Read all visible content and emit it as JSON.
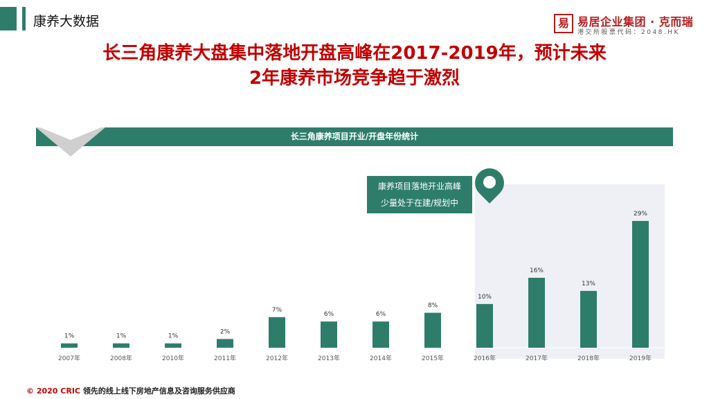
{
  "header": {
    "section_title": "康养大数据",
    "logo": {
      "seal": "易",
      "name": "易居企业集团 · 克而瑞",
      "sub": "港交所股票代码：2048.HK",
      "color": "#b31b1b"
    }
  },
  "headline": {
    "line1": "长三角康养大盘集中落地开盘高峰在2017-2019年，预计未来",
    "line2": "2年康养市场竞争趋于激烈",
    "color": "#c00000"
  },
  "callout": {
    "line1": "康养项目落地开业高峰",
    "line2": "少量处于在建/规划中"
  },
  "footer": {
    "copyright": "© 2020 CRIC",
    "text": "领先的线上线下房地产信息及咨询服务供应商"
  },
  "colors": {
    "accent": "#2e7d6b",
    "highlight_panel": "#eef0f5"
  },
  "chart_data": {
    "type": "bar",
    "title": "长三角康养项目开业/开盘年份统计",
    "categories": [
      "2007年",
      "2008年",
      "2010年",
      "2011年",
      "2012年",
      "2013年",
      "2014年",
      "2015年",
      "2016年",
      "2017年",
      "2018年",
      "2019年"
    ],
    "values": [
      1,
      1,
      1,
      2,
      7,
      6,
      6,
      8,
      10,
      16,
      13,
      29
    ],
    "data_labels": [
      "1%",
      "1%",
      "1%",
      "2%",
      "7%",
      "6%",
      "6%",
      "8%",
      "10%",
      "16%",
      "13%",
      "29%"
    ],
    "unit": "%",
    "ylim": [
      0,
      32
    ],
    "grid": false,
    "legend": "none",
    "highlight_categories": [
      "2016年",
      "2017年",
      "2018年",
      "2019年"
    ]
  }
}
